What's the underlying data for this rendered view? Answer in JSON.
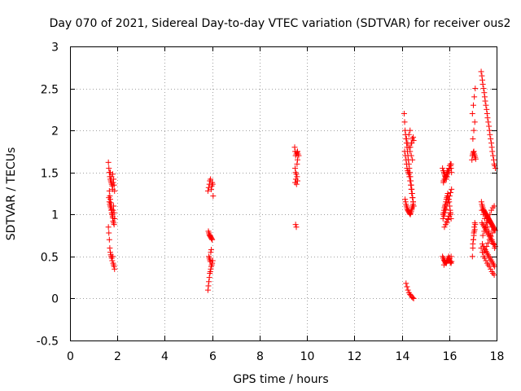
{
  "chart_data": {
    "type": "scatter",
    "title": "Day 070 of 2021, Sidereal Day-to-day VTEC variation (SDTVAR) for receiver ous2",
    "xlabel": "GPS time / hours",
    "ylabel": "SDTVAR / TECUs",
    "xlim": [
      0,
      18
    ],
    "ylim": [
      -0.5,
      3
    ],
    "xticks": [
      "0",
      "2",
      "4",
      "6",
      "8",
      "10",
      "12",
      "14",
      "16",
      "18"
    ],
    "yticks": [
      "-0.5",
      "0",
      "0.5",
      "1",
      "1.5",
      "2",
      "2.5",
      "3"
    ],
    "grid": true,
    "marker": "+",
    "color": "#ff0000",
    "series": [
      {
        "name": "SDTVAR",
        "x": [
          1.62,
          1.64,
          1.66,
          1.68,
          1.7,
          1.72,
          1.74,
          1.76,
          1.78,
          1.8,
          1.82,
          1.84,
          1.86,
          1.88,
          1.64,
          1.66,
          1.68,
          1.7,
          1.72,
          1.74,
          1.76,
          1.78,
          1.8,
          1.82,
          1.84,
          1.86,
          1.88,
          1.62,
          1.64,
          1.66,
          1.68,
          1.7,
          1.72,
          1.74,
          1.76,
          1.78,
          1.8,
          1.82,
          1.84,
          1.86,
          1.88,
          1.66,
          1.68,
          1.7,
          1.72,
          1.74,
          1.76,
          1.78,
          1.8,
          1.82,
          1.84,
          1.86,
          1.7,
          1.75,
          1.8,
          5.82,
          5.85,
          5.88,
          5.9,
          5.93,
          5.96,
          5.98,
          6.0,
          6.02,
          6.04,
          5.84,
          5.86,
          5.88,
          5.9,
          5.92,
          5.94,
          5.96,
          5.98,
          6.0,
          5.82,
          5.84,
          5.86,
          5.88,
          5.9,
          5.92,
          5.94,
          5.96,
          5.98,
          6.0,
          6.02,
          5.86,
          5.88,
          5.9,
          5.92,
          5.94,
          5.96,
          9.48,
          9.5,
          9.52,
          9.55,
          9.58,
          9.6,
          9.62,
          9.65,
          9.5,
          9.52,
          9.55,
          9.58,
          9.6,
          9.5,
          9.53,
          9.56,
          9.58,
          9.6,
          9.55,
          9.52,
          14.1,
          14.12,
          14.14,
          14.16,
          14.18,
          14.2,
          14.22,
          14.24,
          14.26,
          14.28,
          14.3,
          14.32,
          14.34,
          14.36,
          14.38,
          14.4,
          14.42,
          14.44,
          14.46,
          14.48,
          14.5,
          14.12,
          14.15,
          14.18,
          14.2,
          14.22,
          14.25,
          14.28,
          14.3,
          14.32,
          14.35,
          14.38,
          14.4,
          14.42,
          14.45,
          14.48,
          14.5,
          14.14,
          14.16,
          14.18,
          14.2,
          14.22,
          14.24,
          14.26,
          14.28,
          14.3,
          14.32,
          14.34,
          14.36,
          14.38,
          14.4,
          14.42,
          14.44,
          14.46,
          14.48,
          14.2,
          14.25,
          14.3,
          14.35,
          14.4,
          14.45,
          14.18,
          14.22,
          14.26,
          14.3,
          14.34,
          14.38,
          14.42,
          14.46,
          14.5,
          14.36,
          14.4,
          14.44,
          14.48,
          14.5,
          14.3,
          14.35,
          14.42,
          15.72,
          15.75,
          15.78,
          15.8,
          15.82,
          15.85,
          15.88,
          15.9,
          15.92,
          15.95,
          15.98,
          16.0,
          16.02,
          16.05,
          16.08,
          16.1,
          15.74,
          15.76,
          15.78,
          15.8,
          15.82,
          15.84,
          15.86,
          15.88,
          15.9,
          15.92,
          15.94,
          15.96,
          15.98,
          16.0,
          16.02,
          16.04,
          16.06,
          16.08,
          15.72,
          15.75,
          15.78,
          15.8,
          15.82,
          15.85,
          15.88,
          15.9,
          15.92,
          15.95,
          15.98,
          16.0,
          16.02,
          16.05,
          16.08,
          16.1,
          15.74,
          15.78,
          15.82,
          15.86,
          15.9,
          15.94,
          15.98,
          16.02,
          16.06,
          16.1,
          15.76,
          15.8,
          15.84,
          15.88,
          15.92,
          15.96,
          16.0,
          16.04,
          16.08,
          15.8,
          15.85,
          15.9,
          15.95,
          16.0,
          16.05,
          15.78,
          15.84,
          15.9,
          15.96,
          16.02,
          16.08,
          15.76,
          15.82,
          15.88,
          15.94,
          16.0,
          16.06,
          15.9,
          15.95,
          16.0,
          16.05,
          16.96,
          16.98,
          17.0,
          17.02,
          17.04,
          17.06,
          17.08,
          17.1,
          17.12,
          16.98,
          17.0,
          17.02,
          17.04,
          17.06,
          17.08,
          17.0,
          17.02,
          17.04,
          17.06,
          17.08,
          17.1,
          16.98,
          17.02,
          17.06,
          17.1,
          17.0,
          17.04,
          17.08,
          17.35,
          17.38,
          17.4,
          17.42,
          17.45,
          17.48,
          17.5,
          17.52,
          17.55,
          17.58,
          17.6,
          17.62,
          17.65,
          17.68,
          17.7,
          17.72,
          17.75,
          17.78,
          17.8,
          17.82,
          17.85,
          17.88,
          17.9,
          17.92,
          17.95,
          17.36,
          17.38,
          17.4,
          17.42,
          17.44,
          17.46,
          17.48,
          17.5,
          17.52,
          17.54,
          17.56,
          17.58,
          17.6,
          17.62,
          17.64,
          17.66,
          17.68,
          17.7,
          17.72,
          17.74,
          17.76,
          17.78,
          17.8,
          17.82,
          17.84,
          17.86,
          17.88,
          17.9,
          17.92,
          17.94,
          17.38,
          17.42,
          17.46,
          17.5,
          17.54,
          17.58,
          17.62,
          17.66,
          17.7,
          17.74,
          17.78,
          17.82,
          17.86,
          17.9,
          17.94,
          17.4,
          17.44,
          17.48,
          17.52,
          17.56,
          17.6,
          17.64,
          17.68,
          17.72,
          17.76,
          17.8,
          17.84,
          17.88,
          17.92,
          17.35,
          17.4,
          17.45,
          17.5,
          17.55,
          17.6,
          17.65,
          17.7,
          17.75,
          17.8,
          17.85,
          17.9,
          17.38,
          17.44,
          17.5,
          17.56,
          17.62,
          17.68,
          17.74,
          17.8,
          17.86,
          17.92,
          17.42,
          17.48,
          17.54,
          17.6,
          17.66,
          17.72,
          17.78,
          17.84,
          17.9,
          17.46,
          17.52,
          17.58,
          17.64,
          17.7,
          17.76,
          17.82,
          17.88
        ],
        "y": [
          1.62,
          1.55,
          1.5,
          1.45,
          1.42,
          1.4,
          1.38,
          1.36,
          1.34,
          1.3,
          1.38,
          1.42,
          1.35,
          1.28,
          1.2,
          1.15,
          1.12,
          1.1,
          1.08,
          1.05,
          1.02,
          1.0,
          0.98,
          1.05,
          1.1,
          1.02,
          0.95,
          0.85,
          0.78,
          0.7,
          0.6,
          0.55,
          0.52,
          0.5,
          0.48,
          0.45,
          0.5,
          0.42,
          0.4,
          0.38,
          0.35,
          1.28,
          1.22,
          1.18,
          1.14,
          1.1,
          1.06,
          1.0,
          0.96,
          0.92,
          0.9,
          0.88,
          1.5,
          1.45,
          1.48,
          1.28,
          1.32,
          1.36,
          1.4,
          1.42,
          1.3,
          1.34,
          1.38,
          1.36,
          1.22,
          0.8,
          0.78,
          0.76,
          0.75,
          0.74,
          0.73,
          0.72,
          0.71,
          0.7,
          0.1,
          0.15,
          0.2,
          0.25,
          0.3,
          0.32,
          0.35,
          0.38,
          0.4,
          0.42,
          0.45,
          0.5,
          0.48,
          0.46,
          0.44,
          0.55,
          0.58,
          1.8,
          1.75,
          1.7,
          1.72,
          1.74,
          1.75,
          1.72,
          1.7,
          1.55,
          1.5,
          1.48,
          1.45,
          1.4,
          1.38,
          1.42,
          1.36,
          1.6,
          1.65,
          0.85,
          0.88,
          2.2,
          2.1,
          2.0,
          1.95,
          1.9,
          1.85,
          1.8,
          1.75,
          1.7,
          1.65,
          1.6,
          1.55,
          1.5,
          1.45,
          1.4,
          1.35,
          1.3,
          1.25,
          1.2,
          1.15,
          1.1,
          1.75,
          1.7,
          1.65,
          1.6,
          1.55,
          1.52,
          1.5,
          1.48,
          1.45,
          1.4,
          1.35,
          1.3,
          1.25,
          1.2,
          1.15,
          1.1,
          1.18,
          1.15,
          1.12,
          1.1,
          1.08,
          1.06,
          1.05,
          1.04,
          1.03,
          1.02,
          1.01,
          1.0,
          1.02,
          1.04,
          1.06,
          1.08,
          1.1,
          1.12,
          1.9,
          1.85,
          1.8,
          1.75,
          1.7,
          1.65,
          0.18,
          0.14,
          0.1,
          0.07,
          0.05,
          0.04,
          0.02,
          0.01,
          0.0,
          1.8,
          1.85,
          1.9,
          1.92,
          1.88,
          1.95,
          2.0,
          1.85,
          1.55,
          1.52,
          1.5,
          1.48,
          1.46,
          1.44,
          1.42,
          1.45,
          1.48,
          1.5,
          1.52,
          1.55,
          1.58,
          1.6,
          1.55,
          1.5,
          1.0,
          1.02,
          1.05,
          1.08,
          1.1,
          1.12,
          1.15,
          1.18,
          1.2,
          1.22,
          1.25,
          1.22,
          1.18,
          1.15,
          1.1,
          1.05,
          1.0,
          0.95,
          0.5,
          0.48,
          0.46,
          0.45,
          0.44,
          0.43,
          0.42,
          0.44,
          0.46,
          0.48,
          0.5,
          0.47,
          0.45,
          0.43,
          0.42,
          0.44,
          0.95,
          0.98,
          1.02,
          1.06,
          1.1,
          1.14,
          1.18,
          1.22,
          1.26,
          1.3,
          1.4,
          1.42,
          1.45,
          1.48,
          1.5,
          1.52,
          1.55,
          1.58,
          1.6,
          0.85,
          0.88,
          0.92,
          0.95,
          0.98,
          1.02,
          0.4,
          0.42,
          0.44,
          0.46,
          0.48,
          0.5,
          1.38,
          1.42,
          1.46,
          1.5,
          1.54,
          1.58,
          0.9,
          0.94,
          0.98,
          1.02,
          1.65,
          1.7,
          1.72,
          1.74,
          1.75,
          1.72,
          1.7,
          1.68,
          1.66,
          0.5,
          0.6,
          0.7,
          0.75,
          0.8,
          0.82,
          0.65,
          0.7,
          0.78,
          0.85,
          0.9,
          0.88,
          2.2,
          2.3,
          2.4,
          2.5,
          1.9,
          2.0,
          2.1,
          2.7,
          2.65,
          2.6,
          2.55,
          2.5,
          2.45,
          2.4,
          2.35,
          2.3,
          2.25,
          2.2,
          2.15,
          2.1,
          2.05,
          2.0,
          1.95,
          1.9,
          1.85,
          1.8,
          1.75,
          1.7,
          1.65,
          1.6,
          1.58,
          1.55,
          1.15,
          1.12,
          1.1,
          1.08,
          1.06,
          1.05,
          1.04,
          1.03,
          1.02,
          1.01,
          1.0,
          0.99,
          0.98,
          0.97,
          0.96,
          0.95,
          0.94,
          0.93,
          0.92,
          0.91,
          0.9,
          0.89,
          0.88,
          0.87,
          0.86,
          0.85,
          0.84,
          0.83,
          0.82,
          0.81,
          0.9,
          0.88,
          0.86,
          0.84,
          0.82,
          0.8,
          0.78,
          0.76,
          0.74,
          0.72,
          0.7,
          0.68,
          0.66,
          0.64,
          0.62,
          0.65,
          0.62,
          0.6,
          0.58,
          0.56,
          0.54,
          0.52,
          0.5,
          0.48,
          0.46,
          0.44,
          0.42,
          0.4,
          0.38,
          0.6,
          0.55,
          0.5,
          0.48,
          0.45,
          0.42,
          0.4,
          0.38,
          0.35,
          0.32,
          0.3,
          0.28,
          1.05,
          1.0,
          0.95,
          0.9,
          0.85,
          0.8,
          0.75,
          0.7,
          0.65,
          0.6,
          0.75,
          0.8,
          0.85,
          0.9,
          0.95,
          1.0,
          1.05,
          1.08,
          1.1,
          0.55,
          0.58,
          0.62,
          0.66,
          0.7,
          0.74,
          0.78,
          0.82
        ]
      }
    ]
  }
}
